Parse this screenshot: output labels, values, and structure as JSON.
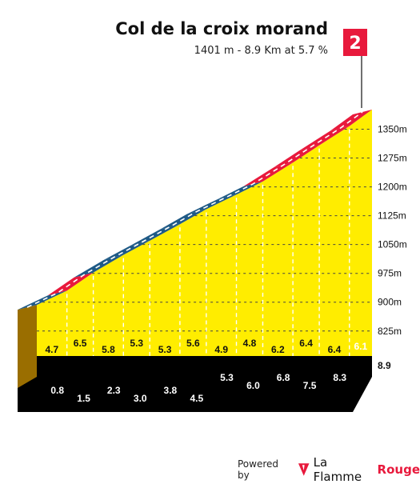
{
  "header": {
    "title": "Col de la croix morand",
    "subtitle": "1401 m - 8.9 Km at 5.7 %"
  },
  "category_badge": "2",
  "footer": {
    "powered_by": "Powered by",
    "brand_part1": "La Flamme",
    "brand_part2": "Rouge"
  },
  "colors": {
    "fill": "#ffed00",
    "band_red": "#e8193c",
    "band_blue": "#1f5a86",
    "base": "#000000",
    "side": "#9a6e00"
  },
  "chart_data": {
    "type": "area",
    "title": "Col de la croix morand",
    "subtitle": "1401 m - 8.9 Km at 5.7 %",
    "y_ticks": [
      "825m",
      "900m",
      "975m",
      "1050m",
      "1125m",
      "1200m",
      "1275m",
      "1350m"
    ],
    "ylim": [
      760,
      1401
    ],
    "km_marks": [
      "0.8",
      "1.5",
      "2.3",
      "3.0",
      "3.8",
      "4.5",
      "5.3",
      "6.0",
      "6.8",
      "7.5",
      "8.3"
    ],
    "final_km": "8.9",
    "gradients": [
      "4.7",
      "6.5",
      "5.8",
      "5.3",
      "5.3",
      "5.6",
      "4.9",
      "4.8",
      "6.2",
      "6.4",
      "6.4",
      "6.1"
    ],
    "segment_colors": [
      "blue",
      "red",
      "blue",
      "blue",
      "blue",
      "blue",
      "blue",
      "blue",
      "red",
      "red",
      "red",
      "red"
    ],
    "elevation_points": [
      {
        "km": 0,
        "elevation": 893
      },
      {
        "km": 0.8,
        "elevation": 930
      },
      {
        "km": 1.5,
        "elevation": 977
      },
      {
        "km": 2.3,
        "elevation": 1023
      },
      {
        "km": 3.0,
        "elevation": 1060
      },
      {
        "km": 3.8,
        "elevation": 1103
      },
      {
        "km": 4.5,
        "elevation": 1142
      },
      {
        "km": 5.3,
        "elevation": 1180
      },
      {
        "km": 6.0,
        "elevation": 1214
      },
      {
        "km": 6.8,
        "elevation": 1263
      },
      {
        "km": 7.5,
        "elevation": 1308
      },
      {
        "km": 8.3,
        "elevation": 1358
      },
      {
        "km": 8.9,
        "elevation": 1401
      }
    ]
  }
}
